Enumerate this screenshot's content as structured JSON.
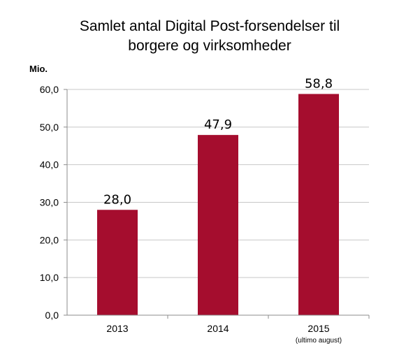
{
  "chart_data": {
    "type": "bar",
    "title_lines": [
      "Samlet antal Digital Post-forsendelser til",
      "borgere og virksomheder"
    ],
    "ylabel": "Mio.",
    "xlabel": "",
    "categories": [
      "2013",
      "2014",
      "2015"
    ],
    "category_notes": [
      "",
      "",
      "(ultimo august)"
    ],
    "values": [
      28.0,
      47.9,
      58.8
    ],
    "data_labels": [
      "28,0",
      "47,9",
      "58,8"
    ],
    "ylim": [
      0,
      60
    ],
    "yticks": [
      0,
      10,
      20,
      30,
      40,
      50,
      60
    ],
    "ytick_labels": [
      "0,0",
      "10,0",
      "20,0",
      "30,0",
      "40,0",
      "50,0",
      "60,0"
    ],
    "grid": true,
    "legend": "none",
    "bar_color": "#a50d2e"
  }
}
